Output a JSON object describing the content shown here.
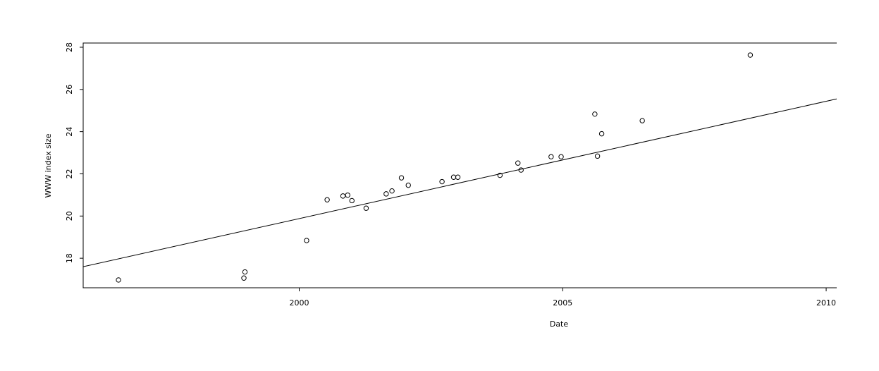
{
  "chart_data": {
    "type": "scatter",
    "title": "",
    "xlabel": "Date",
    "ylabel": "WWW index size",
    "xlim": [
      1995.9,
      2010.2
    ],
    "ylim": [
      16.6,
      28.2
    ],
    "x_ticks": [
      2000,
      2005,
      2010
    ],
    "x_tick_labels": [
      "2000",
      "2005",
      "2010"
    ],
    "y_ticks": [
      18,
      20,
      22,
      24,
      26,
      28
    ],
    "y_tick_labels": [
      "18",
      "20",
      "22",
      "24",
      "26",
      "28"
    ],
    "grid": false,
    "legend": "none",
    "points": [
      {
        "x": 1996.57,
        "y": 16.97
      },
      {
        "x": 1998.95,
        "y": 17.06
      },
      {
        "x": 1998.97,
        "y": 17.35
      },
      {
        "x": 2000.14,
        "y": 18.84
      },
      {
        "x": 2000.53,
        "y": 20.77
      },
      {
        "x": 2000.83,
        "y": 20.95
      },
      {
        "x": 2000.92,
        "y": 20.99
      },
      {
        "x": 2001.0,
        "y": 20.73
      },
      {
        "x": 2001.27,
        "y": 20.37
      },
      {
        "x": 2001.65,
        "y": 21.05
      },
      {
        "x": 2001.76,
        "y": 21.19
      },
      {
        "x": 2001.94,
        "y": 21.81
      },
      {
        "x": 2002.07,
        "y": 21.46
      },
      {
        "x": 2002.71,
        "y": 21.63
      },
      {
        "x": 2002.93,
        "y": 21.84
      },
      {
        "x": 2003.01,
        "y": 21.84
      },
      {
        "x": 2003.81,
        "y": 21.93
      },
      {
        "x": 2004.15,
        "y": 22.51
      },
      {
        "x": 2004.21,
        "y": 22.18
      },
      {
        "x": 2004.78,
        "y": 22.81
      },
      {
        "x": 2004.97,
        "y": 22.81
      },
      {
        "x": 2005.61,
        "y": 24.83
      },
      {
        "x": 2005.66,
        "y": 22.84
      },
      {
        "x": 2005.74,
        "y": 23.9
      },
      {
        "x": 2006.51,
        "y": 24.52
      },
      {
        "x": 2008.56,
        "y": 27.63
      }
    ],
    "fit_line": {
      "x": [
        1995.9,
        2010.2
      ],
      "y": [
        17.6,
        25.55
      ]
    }
  }
}
